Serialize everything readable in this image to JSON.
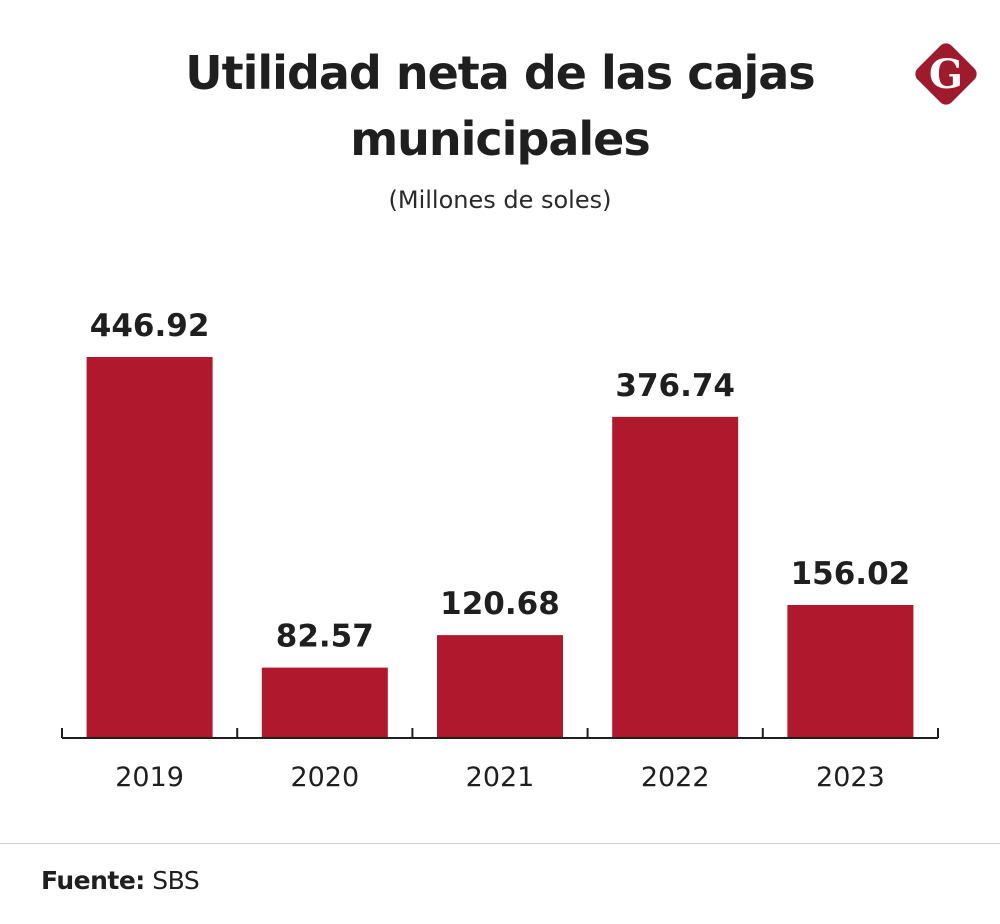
{
  "brand": {
    "logo_letter": "G",
    "logo_icon": "g-diamond-logo-icon",
    "accent_color": "#b0182e"
  },
  "chart_data": {
    "type": "bar",
    "title": "Utilidad neta de las cajas municipales",
    "title_lines": [
      "Utilidad neta de las cajas",
      "municipales"
    ],
    "subtitle": "(Millones de soles)",
    "categories": [
      "2019",
      "2020",
      "2021",
      "2022",
      "2023"
    ],
    "values": [
      446.92,
      82.57,
      120.68,
      376.74,
      156.02
    ],
    "value_labels": [
      "446.92",
      "82.57",
      "120.68",
      "376.74",
      "156.02"
    ],
    "xlabel": "",
    "ylabel": "",
    "ylim": [
      0,
      446.92
    ],
    "grid": false,
    "legend": "none",
    "bar_color": "#b0182e"
  },
  "footer": {
    "source_label": "Fuente:",
    "source_value": "SBS"
  }
}
